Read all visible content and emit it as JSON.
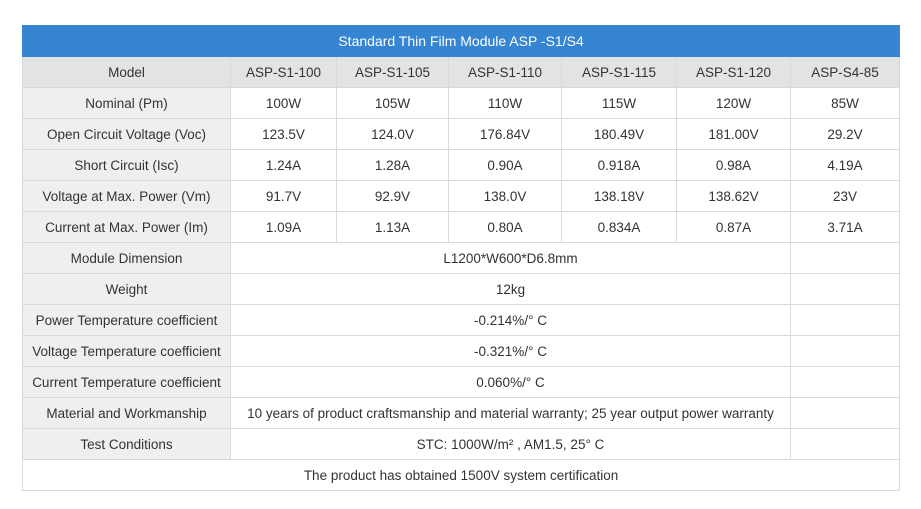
{
  "title": "Standard Thin Film Module ASP -S1/S4",
  "header": {
    "label": "Model",
    "models": [
      "ASP-S1-100",
      "ASP-S1-105",
      "ASP-S1-110",
      "ASP-S1-115",
      "ASP-S1-120",
      "ASP-S4-85"
    ]
  },
  "rows": [
    {
      "label": "Nominal (Pm)",
      "values": [
        "100W",
        "105W",
        "110W",
        "115W",
        "120W",
        "85W"
      ]
    },
    {
      "label": "Open Circuit Voltage (Voc)",
      "values": [
        "123.5V",
        "124.0V",
        "176.84V",
        "180.49V",
        "181.00V",
        "29.2V"
      ]
    },
    {
      "label": "Short Circuit (Isc)",
      "values": [
        "1.24A",
        "1.28A",
        "0.90A",
        "0.918A",
        "0.98A",
        "4.19A"
      ]
    },
    {
      "label": "Voltage at Max. Power (Vm)",
      "values": [
        "91.7V",
        "92.9V",
        "138.0V",
        "138.18V",
        "138.62V",
        "23V"
      ]
    },
    {
      "label": "Current at Max. Power (Im)",
      "values": [
        "1.09A",
        "1.13A",
        "0.80A",
        "0.834A",
        "0.87A",
        "3.71A"
      ]
    }
  ],
  "shared_rows": [
    {
      "label": "Module Dimension",
      "value": "L1200*W600*D6.8mm"
    },
    {
      "label": "Weight",
      "value": "12kg"
    },
    {
      "label": "Power Temperature coefficient",
      "value": "-0.214%/° C"
    },
    {
      "label": "Voltage Temperature coefficient",
      "value": "-0.321%/° C"
    },
    {
      "label": "Current Temperature coefficient",
      "value": "0.060%/° C"
    },
    {
      "label": "Material and Workmanship",
      "value": "10 years of product craftsmanship and material warranty; 25 year output power warranty"
    },
    {
      "label": "Test Conditions",
      "value": "STC: 1000W/m² , AM1.5, 25° C"
    }
  ],
  "footer": "The product has obtained 1500V system certification",
  "colors": {
    "title_bar": "#3585d2",
    "header_bg": "#e3e3e3",
    "border": "#d9d9d9"
  }
}
